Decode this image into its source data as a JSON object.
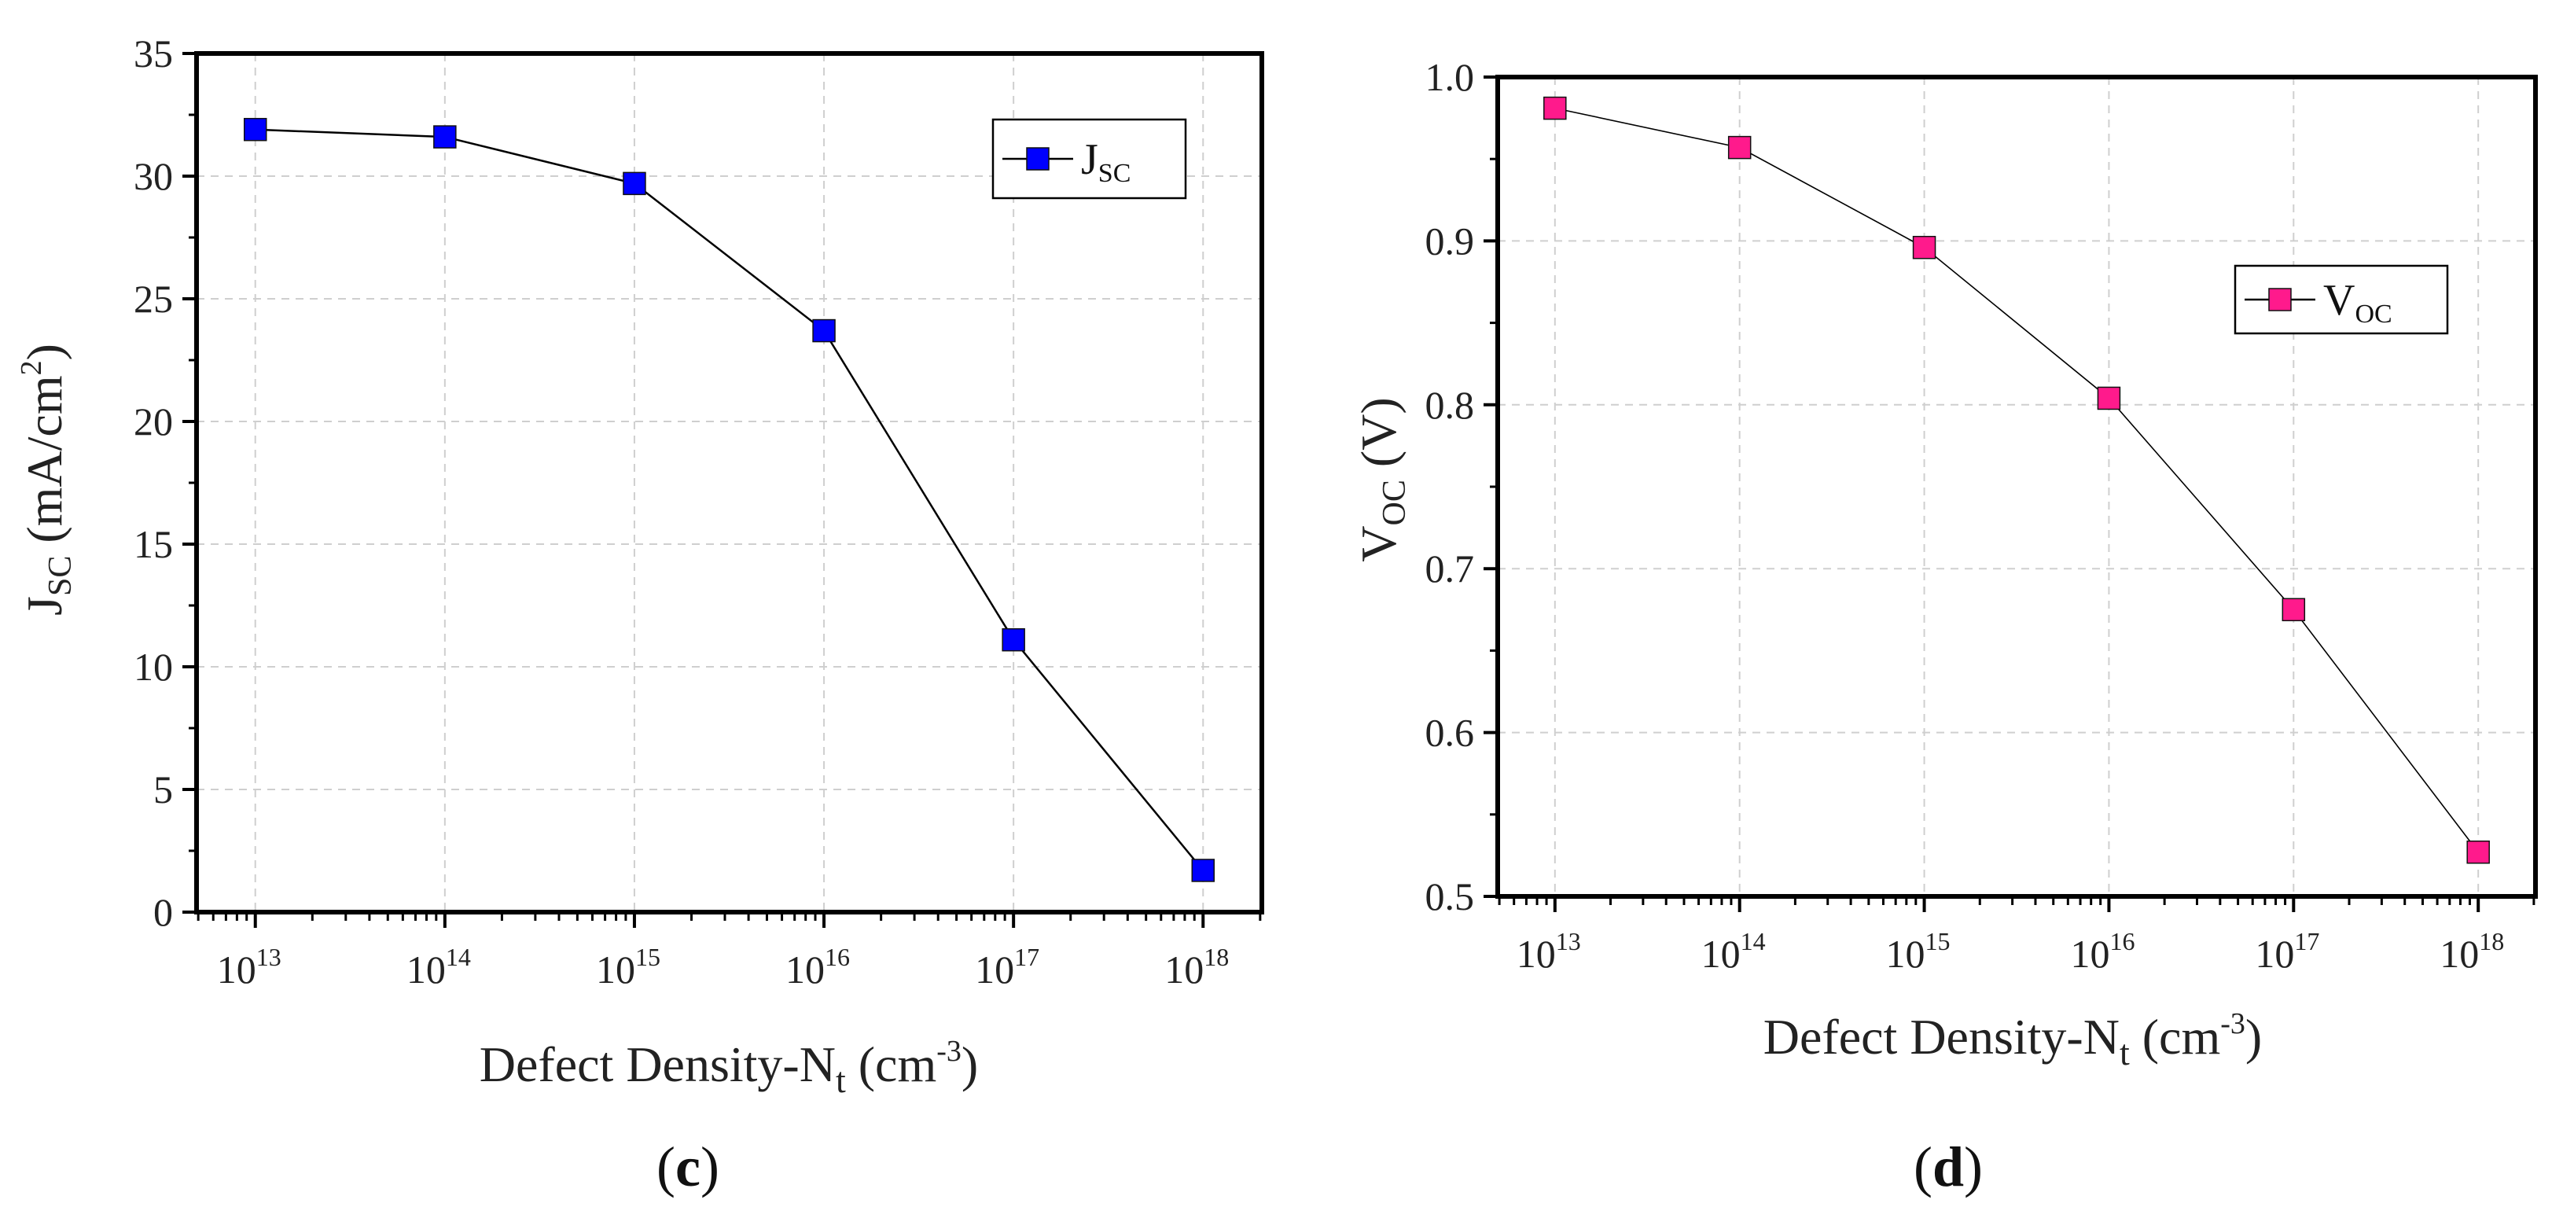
{
  "chart_data": [
    {
      "panel": "c",
      "type": "line",
      "xscale": "log",
      "x": [
        10000000000000.0,
        100000000000000.0,
        1000000000000000.0,
        1e+16,
        1e+17,
        1e+18
      ],
      "x_tick_labels": [
        {
          "base": "10",
          "exp": "13"
        },
        {
          "base": "10",
          "exp": "14"
        },
        {
          "base": "10",
          "exp": "15"
        },
        {
          "base": "10",
          "exp": "16"
        },
        {
          "base": "10",
          "exp": "17"
        },
        {
          "base": "10",
          "exp": "18"
        }
      ],
      "series": [
        {
          "name": "JSC",
          "label_main": "J",
          "label_sub": "SC",
          "color": "#0000ff",
          "values": [
            31.9,
            31.6,
            29.7,
            23.7,
            11.1,
            1.7
          ]
        }
      ],
      "ylim": [
        0,
        35
      ],
      "yticks": [
        0,
        5,
        10,
        15,
        20,
        25,
        30,
        35
      ],
      "xlabel": {
        "main": "Defect Density-N",
        "sub": "t",
        "unit": " (cm",
        "sup": "-3",
        "close": ")"
      },
      "ylabel": {
        "main": "J",
        "sub": "SC",
        "unit": " (mA/cm",
        "sup": "2",
        "close": ")"
      },
      "legend_position": "top-right",
      "grid": true,
      "panel_label": "c"
    },
    {
      "panel": "d",
      "type": "line",
      "xscale": "log",
      "x": [
        10000000000000.0,
        100000000000000.0,
        1000000000000000.0,
        1e+16,
        1e+17,
        1e+18
      ],
      "x_tick_labels": [
        {
          "base": "10",
          "exp": "13"
        },
        {
          "base": "10",
          "exp": "14"
        },
        {
          "base": "10",
          "exp": "15"
        },
        {
          "base": "10",
          "exp": "16"
        },
        {
          "base": "10",
          "exp": "17"
        },
        {
          "base": "10",
          "exp": "18"
        }
      ],
      "series": [
        {
          "name": "VOC",
          "label_main": "V",
          "label_sub": "OC",
          "color": "#ff1a8c",
          "values": [
            0.981,
            0.957,
            0.896,
            0.804,
            0.675,
            0.527
          ]
        }
      ],
      "ylim": [
        0.5,
        1.0
      ],
      "yticks": [
        0.5,
        0.6,
        0.7,
        0.8,
        0.9,
        1.0
      ],
      "ytick_labels": [
        "0.5",
        "0.6",
        "0.7",
        "0.8",
        "0.9",
        "1.0"
      ],
      "xlabel": {
        "main": "Defect Density-N",
        "sub": "t",
        "unit": " (cm",
        "sup": "-3",
        "close": ")"
      },
      "ylabel": {
        "main": "V",
        "sub": "OC",
        "unit": " (V)",
        "sup": "",
        "close": ""
      },
      "legend_position": "top-right",
      "grid": true,
      "panel_label": "d"
    }
  ]
}
